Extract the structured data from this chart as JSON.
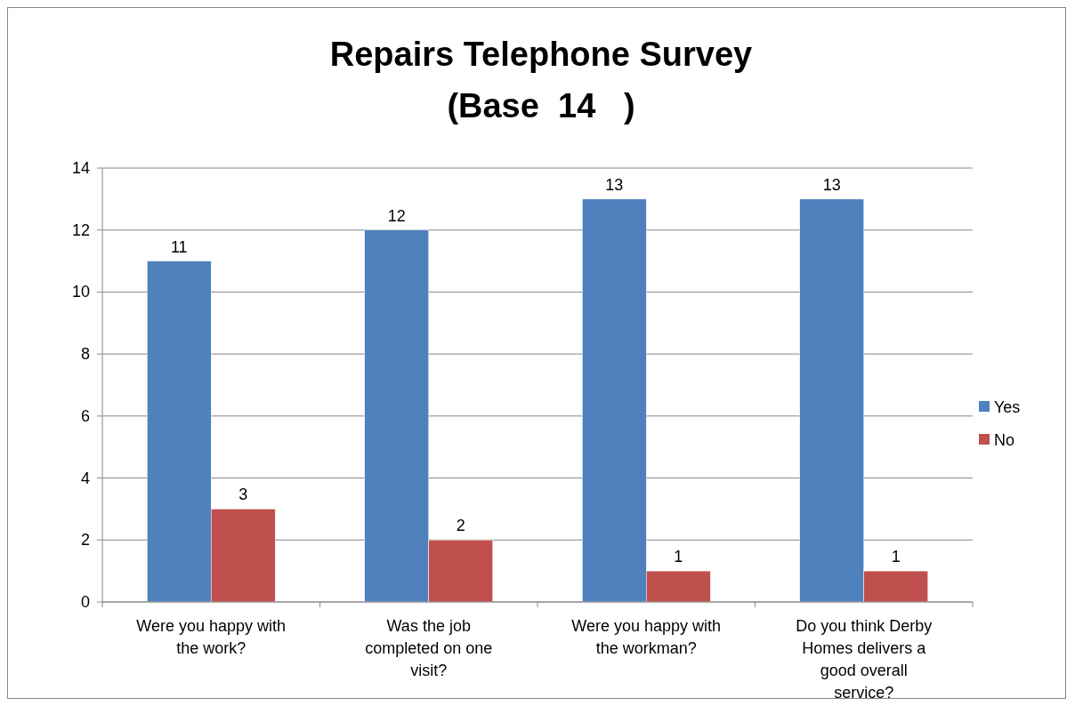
{
  "chart_data": {
    "type": "bar",
    "title": "Repairs Telephone Survey",
    "subtitle": "(Base  14   )",
    "categories": [
      "Were you happy with the work?",
      "Was the job completed on one visit?",
      "Were you happy with the workman?",
      "Do you think Derby Homes delivers a good overall service?"
    ],
    "series": [
      {
        "name": "Yes",
        "color": "#4f81bd",
        "values": [
          11,
          12,
          13,
          13
        ]
      },
      {
        "name": "No",
        "color": "#c0504d",
        "values": [
          3,
          2,
          1,
          1
        ]
      }
    ],
    "ylim": [
      0,
      14
    ],
    "yticks": [
      0,
      2,
      4,
      6,
      8,
      10,
      12,
      14
    ],
    "grid": "y",
    "legend": "right",
    "data_labels": true
  }
}
